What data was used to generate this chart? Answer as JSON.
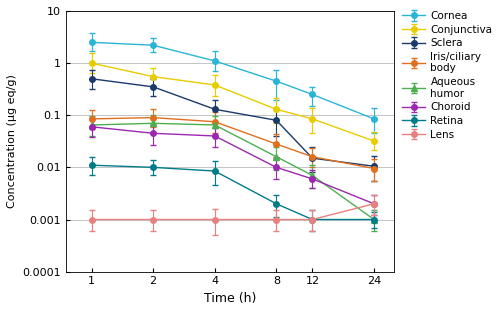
{
  "time": [
    1,
    2,
    4,
    8,
    12,
    24
  ],
  "series": {
    "Cornea": {
      "values": [
        2.5,
        2.2,
        1.1,
        0.45,
        0.25,
        0.085
      ],
      "yerr_lo": [
        0.8,
        0.6,
        0.4,
        0.25,
        0.1,
        0.04
      ],
      "yerr_hi": [
        1.2,
        0.8,
        0.6,
        0.3,
        0.1,
        0.05
      ],
      "color": "#29b6d5",
      "marker": "o"
    },
    "Conjunctiva": {
      "values": [
        1.0,
        0.55,
        0.38,
        0.13,
        0.085,
        0.032
      ],
      "yerr_lo": [
        0.35,
        0.2,
        0.15,
        0.06,
        0.04,
        0.01
      ],
      "yerr_hi": [
        0.55,
        0.25,
        0.2,
        0.08,
        0.05,
        0.015
      ],
      "color": "#e8cc00",
      "marker": "o"
    },
    "Sclera": {
      "values": [
        0.5,
        0.35,
        0.13,
        0.08,
        0.015,
        0.0105
      ],
      "yerr_lo": [
        0.18,
        0.12,
        0.06,
        0.04,
        0.007,
        0.005
      ],
      "yerr_hi": [
        0.25,
        0.15,
        0.07,
        0.05,
        0.01,
        0.006
      ],
      "color": "#1a3a6b",
      "marker": "o"
    },
    "Iris/ciliary\nbody": {
      "values": [
        0.085,
        0.09,
        0.075,
        0.028,
        0.016,
        0.0095
      ],
      "yerr_lo": [
        0.03,
        0.03,
        0.03,
        0.012,
        0.006,
        0.004
      ],
      "yerr_hi": [
        0.04,
        0.04,
        0.04,
        0.015,
        0.008,
        0.005
      ],
      "color": "#e07020",
      "marker": "o"
    },
    "Aqueous\nhumor": {
      "values": [
        0.065,
        0.07,
        0.065,
        0.016,
        0.007,
        0.001
      ],
      "yerr_lo": [
        0.025,
        0.025,
        0.025,
        0.007,
        0.003,
        0.0004
      ],
      "yerr_hi": [
        0.03,
        0.03,
        0.03,
        0.009,
        0.004,
        0.0005
      ],
      "color": "#4caf50",
      "marker": "^"
    },
    "Choroid": {
      "values": [
        0.06,
        0.045,
        0.04,
        0.01,
        0.006,
        0.002
      ],
      "yerr_lo": [
        0.022,
        0.018,
        0.015,
        0.004,
        0.002,
        0.0008
      ],
      "yerr_hi": [
        0.028,
        0.022,
        0.018,
        0.005,
        0.003,
        0.001
      ],
      "color": "#9c27b0",
      "marker": "o"
    },
    "Retina": {
      "values": [
        0.011,
        0.01,
        0.0085,
        0.002,
        0.001,
        0.001
      ],
      "yerr_lo": [
        0.004,
        0.003,
        0.004,
        0.0009,
        0.0004,
        0.0003
      ],
      "yerr_hi": [
        0.005,
        0.004,
        0.005,
        0.001,
        0.0005,
        0.0004
      ],
      "color": "#007b8a",
      "marker": "o"
    },
    "Lens": {
      "values": [
        0.001,
        0.001,
        0.001,
        0.001,
        0.001,
        0.002
      ],
      "yerr_lo": [
        0.0004,
        0.0004,
        0.0005,
        0.0004,
        0.0004,
        0.0008
      ],
      "yerr_hi": [
        0.0005,
        0.0005,
        0.0006,
        0.0005,
        0.0005,
        0.001
      ],
      "color": "#e88080",
      "marker": "o"
    }
  },
  "legend_labels": [
    "Cornea",
    "Conjunctiva",
    "Sclera",
    "Iris/ciliary\nbody",
    "Aqueous\nhumor",
    "Choroid",
    "Retina",
    "Lens"
  ],
  "xlabel": "Time (h)",
  "ylabel": "Concentration (μg eq/g)",
  "ylim": [
    0.0001,
    10
  ],
  "background_color": "#ffffff",
  "grid_color": "#bbbbbb"
}
